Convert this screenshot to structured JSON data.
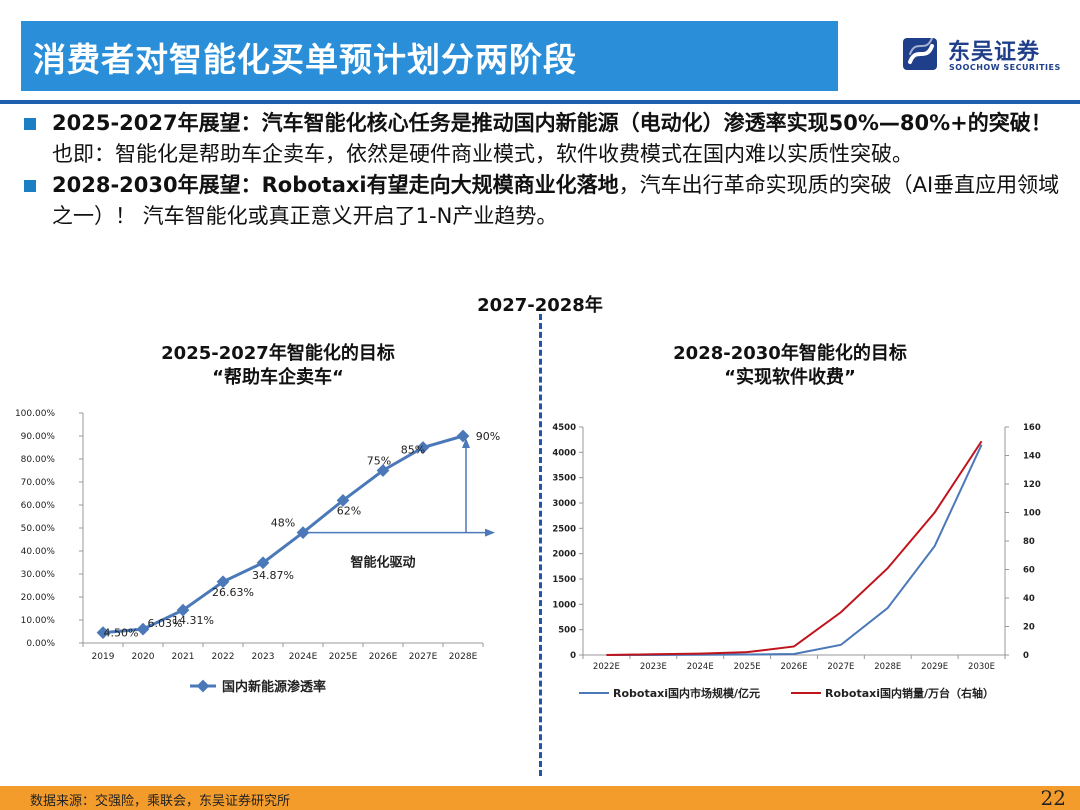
{
  "header": {
    "title": "消费者对智能化买单预计划分两阶段",
    "logo_cn": "东吴证券",
    "logo_en": "SOOCHOW SECURITIES"
  },
  "bullets": [
    {
      "bold": "2025-2027年展望：汽车智能化核心任务是推动国内新能源（电动化）渗透率实现50%—80%+的突破！",
      "normal": "也即：智能化是帮助车企卖车，依然是硬件商业模式，软件收费模式在国内难以实质性突破。"
    },
    {
      "bold": "2028-2030年展望：Robotaxi有望走向大规模商业化落地",
      "normal": "，汽车出行革命实现质的突破（AI垂直应用领域之一）！ 汽车智能化或真正意义开启了1-N产业趋势。"
    }
  ],
  "middle_label": "2027-2028年",
  "left_chart": {
    "title_line1": "2025-2027年智能化的目标",
    "title_line2": "“帮助车企卖车“"
  },
  "right_chart": {
    "title_line1": "2028-2030年智能化的目标",
    "title_line2": "“实现软件收费”"
  },
  "footer": {
    "source": "数据来源：交强险，乘联会，东吴证券研究所",
    "page": "22"
  },
  "colors": {
    "title_bar": "#2a8fd8",
    "footer": "#f39c2c",
    "line_blue": "#4a78b8",
    "line_red": "#c0141c",
    "brand": "#1f3f8a"
  },
  "chart_data": [
    {
      "type": "line",
      "categories": [
        "2019",
        "2020",
        "2021",
        "2022",
        "2023",
        "2024E",
        "2025E",
        "2026E",
        "2027E",
        "2028E"
      ],
      "series": [
        {
          "name": "国内新能源渗透率",
          "values": [
            4.5,
            6.03,
            14.31,
            26.63,
            34.87,
            48,
            62,
            75,
            85,
            90
          ]
        }
      ],
      "data_labels": [
        "4.50%",
        "6.03%",
        "14.31%",
        "26.63%",
        "34.87%",
        "48%",
        "62%",
        "75%",
        "85%",
        "90%"
      ],
      "y_ticks": [
        "0.00%",
        "10.00%",
        "20.00%",
        "30.00%",
        "40.00%",
        "50.00%",
        "60.00%",
        "70.00%",
        "80.00%",
        "90.00%",
        "100.00%"
      ],
      "ylim": [
        0,
        100
      ],
      "annotation": "智能化驱动",
      "legend": "bottom-center",
      "grid": false
    },
    {
      "type": "line",
      "categories": [
        "2022E",
        "2023E",
        "2024E",
        "2025E",
        "2026E",
        "2027E",
        "2028E",
        "2029E",
        "2030E"
      ],
      "series": [
        {
          "name": "Robotaxi国内市场规模/亿元",
          "axis": "left",
          "values": [
            0,
            0,
            5,
            10,
            20,
            200,
            930,
            2150,
            4150
          ]
        },
        {
          "name": "Robotaxi国内销量/万台（右轴）",
          "axis": "right",
          "values": [
            0,
            0.5,
            1,
            2,
            6,
            30,
            61,
            100,
            150
          ]
        }
      ],
      "y_left_ticks": [
        "0",
        "500",
        "1000",
        "1500",
        "2000",
        "2500",
        "3000",
        "3500",
        "4000",
        "4500"
      ],
      "y_right_ticks": [
        "0",
        "20",
        "40",
        "60",
        "80",
        "100",
        "120",
        "140",
        "160"
      ],
      "ylim_left": [
        0,
        4500
      ],
      "ylim_right": [
        0,
        160
      ],
      "legend": "bottom-center",
      "grid": false
    }
  ]
}
